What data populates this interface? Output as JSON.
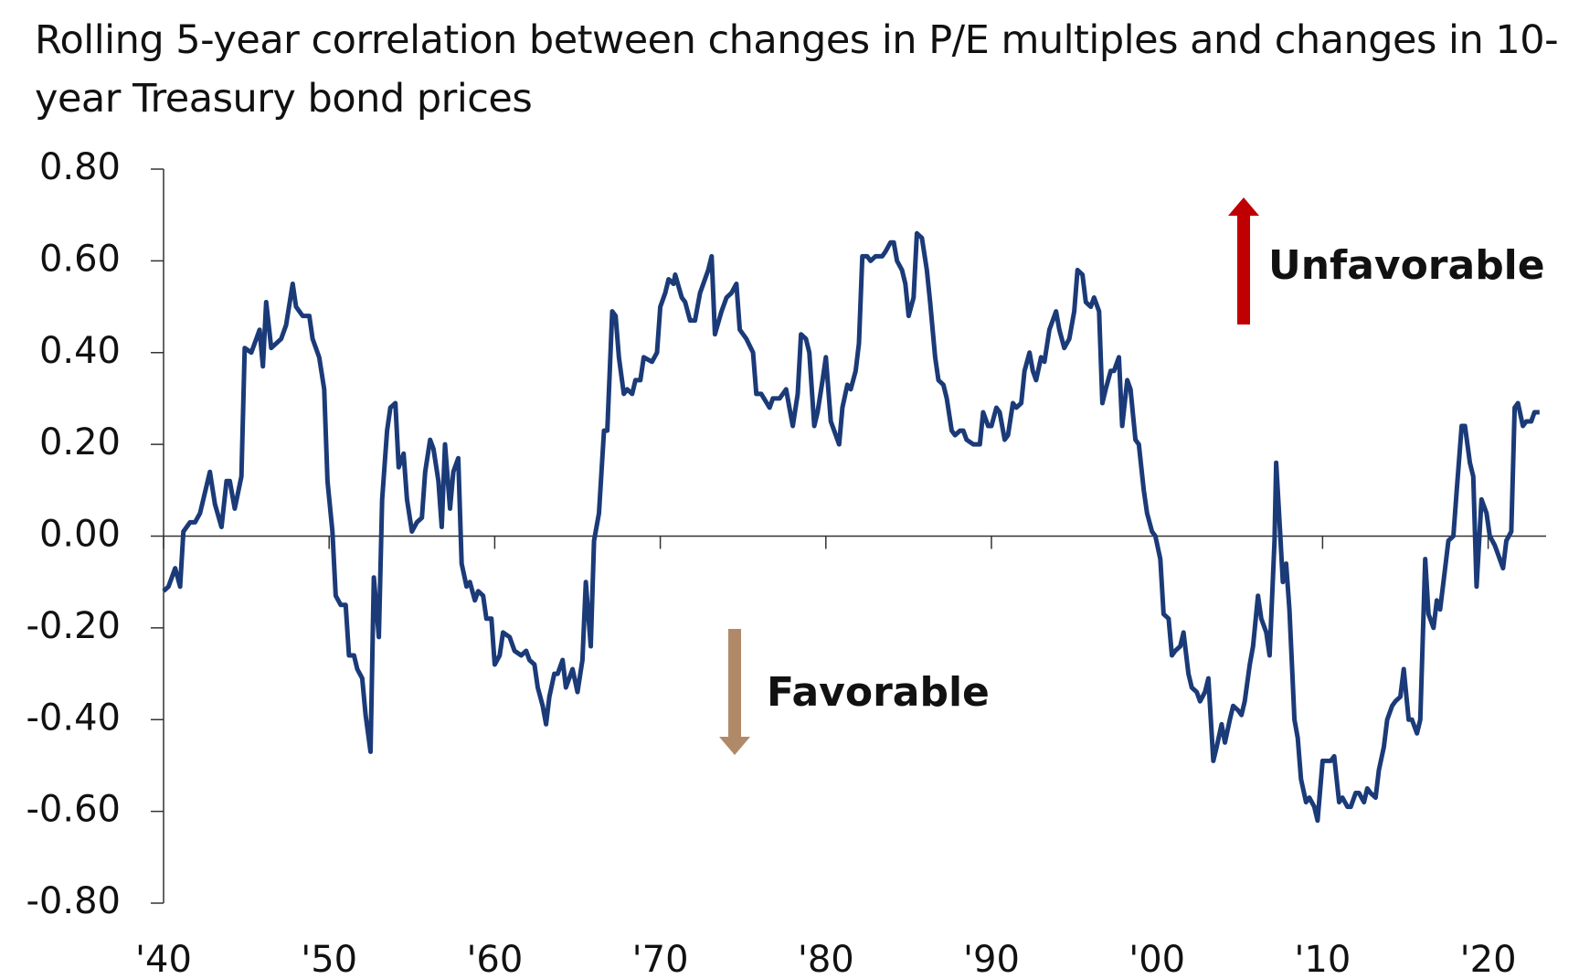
{
  "chart_data": {
    "type": "line",
    "title": "Rolling 5-year correlation between changes in P/E multiples and changes in 10-year Treasury bond prices",
    "annotations": [
      "Unfavorable",
      "Favorable"
    ],
    "color": "#1b3a78",
    "x": [
      1940.0,
      1940.3,
      1940.7,
      1941.0,
      1941.2,
      1941.6,
      1941.9,
      1942.2,
      1942.8,
      1943.1,
      1943.5,
      1943.8,
      1944.0,
      1944.3,
      1944.7,
      1944.9,
      1945.3,
      1945.6,
      1945.8,
      1946.0,
      1946.2,
      1946.5,
      1947.1,
      1947.4,
      1947.8,
      1948.0,
      1948.4,
      1948.8,
      1949.0,
      1949.4,
      1949.7,
      1949.9,
      1950.2,
      1950.4,
      1950.7,
      1951.0,
      1951.2,
      1951.5,
      1951.7,
      1952.0,
      1952.2,
      1952.5,
      1952.7,
      1953.0,
      1953.2,
      1953.5,
      1953.7,
      1954.0,
      1954.2,
      1954.5,
      1954.7,
      1955.0,
      1955.3,
      1955.6,
      1955.8,
      1956.1,
      1956.3,
      1956.6,
      1956.8,
      1957.0,
      1957.3,
      1957.5,
      1957.8,
      1958.0,
      1958.3,
      1958.5,
      1958.8,
      1959.0,
      1959.3,
      1959.5,
      1959.8,
      1960.0,
      1960.3,
      1960.5,
      1960.9,
      1961.2,
      1961.6,
      1961.9,
      1962.1,
      1962.4,
      1962.6,
      1962.9,
      1963.1,
      1963.3,
      1963.6,
      1963.8,
      1964.1,
      1964.3,
      1964.7,
      1965.0,
      1965.3,
      1965.5,
      1965.8,
      1966.0,
      1966.3,
      1966.6,
      1966.8,
      1967.1,
      1967.3,
      1967.5,
      1967.8,
      1968.0,
      1968.3,
      1968.5,
      1968.8,
      1969.0,
      1969.5,
      1969.8,
      1970.0,
      1970.3,
      1970.5,
      1970.8,
      1970.9,
      1971.3,
      1971.5,
      1971.8,
      1972.1,
      1972.4,
      1972.6,
      1972.9,
      1973.1,
      1973.3,
      1973.7,
      1974.0,
      1974.3,
      1974.6,
      1974.8,
      1975.2,
      1975.6,
      1975.8,
      1976.1,
      1976.6,
      1976.8,
      1977.2,
      1977.6,
      1977.8,
      1978.0,
      1978.3,
      1978.5,
      1978.8,
      1979.0,
      1979.3,
      1979.5,
      1979.8,
      1980.0,
      1980.3,
      1980.5,
      1980.8,
      1981.0,
      1981.3,
      1981.5,
      1981.8,
      1982.0,
      1982.2,
      1982.5,
      1982.7,
      1983.0,
      1983.4,
      1983.6,
      1983.9,
      1984.1,
      1984.3,
      1984.6,
      1984.8,
      1985.0,
      1985.3,
      1985.5,
      1985.8,
      1986.1,
      1986.3,
      1986.6,
      1986.8,
      1987.1,
      1987.3,
      1987.6,
      1987.8,
      1988.1,
      1988.3,
      1988.5,
      1988.9,
      1989.3,
      1989.5,
      1989.8,
      1990.0,
      1990.3,
      1990.5,
      1990.8,
      1991.0,
      1991.3,
      1991.5,
      1991.8,
      1992.0,
      1992.3,
      1992.5,
      1992.7,
      1993.0,
      1993.2,
      1993.5,
      1993.9,
      1994.1,
      1994.4,
      1994.7,
      1995.0,
      1995.2,
      1995.5,
      1995.7,
      1996.0,
      1996.2,
      1996.5,
      1996.7,
      1996.9,
      1997.2,
      1997.4,
      1997.7,
      1997.9,
      1998.2,
      1998.4,
      1998.7,
      1998.9,
      1999.2,
      1999.4,
      1999.7,
      1999.9,
      2000.2,
      2000.4,
      2000.7,
      2000.9,
      2001.1,
      2001.4,
      2001.6,
      2001.9,
      2002.1,
      2002.4,
      2002.6,
      2002.9,
      2003.1,
      2003.4,
      2003.6,
      2003.9,
      2004.1,
      2004.4,
      2004.6,
      2004.9,
      2005.1,
      2005.3,
      2005.6,
      2005.8,
      2006.1,
      2006.3,
      2006.6,
      2006.8,
      2007.1,
      2007.2,
      2007.4,
      2007.6,
      2007.8,
      2008.0,
      2008.3,
      2008.5,
      2008.7,
      2009.0,
      2009.2,
      2009.5,
      2009.7,
      2010.0,
      2010.2,
      2010.5,
      2010.7,
      2011.0,
      2011.2,
      2011.5,
      2011.7,
      2012.0,
      2012.2,
      2012.5,
      2012.7,
      2012.9,
      2013.2,
      2013.4,
      2013.7,
      2013.9,
      2014.2,
      2014.4,
      2014.7,
      2014.9,
      2015.2,
      2015.4,
      2015.7,
      2015.9,
      2016.2,
      2016.4,
      2016.7,
      2016.9,
      2017.1,
      2017.4,
      2017.6,
      2017.9,
      2018.1,
      2018.4,
      2018.6,
      2018.9,
      2019.1,
      2019.3,
      2019.6,
      2019.9,
      2020.1,
      2020.4,
      2020.6,
      2020.9,
      2021.1,
      2021.4,
      2021.6,
      2021.8,
      2022.1,
      2022.3,
      2022.6,
      2022.8,
      2023.1
    ],
    "values": [
      -0.12,
      -0.11,
      -0.07,
      -0.11,
      0.01,
      0.03,
      0.03,
      0.05,
      0.14,
      0.07,
      0.02,
      0.12,
      0.12,
      0.06,
      0.13,
      0.41,
      0.4,
      0.43,
      0.45,
      0.37,
      0.51,
      0.41,
      0.43,
      0.46,
      0.55,
      0.5,
      0.48,
      0.48,
      0.43,
      0.39,
      0.32,
      0.12,
      0.01,
      -0.13,
      -0.15,
      -0.15,
      -0.26,
      -0.26,
      -0.29,
      -0.31,
      -0.39,
      -0.47,
      -0.09,
      -0.22,
      0.08,
      0.23,
      0.28,
      0.29,
      0.15,
      0.18,
      0.08,
      0.01,
      0.03,
      0.04,
      0.14,
      0.21,
      0.19,
      0.12,
      0.02,
      0.2,
      0.06,
      0.14,
      0.17,
      -0.06,
      -0.11,
      -0.1,
      -0.14,
      -0.12,
      -0.13,
      -0.18,
      -0.18,
      -0.28,
      -0.26,
      -0.21,
      -0.22,
      -0.25,
      -0.26,
      -0.25,
      -0.27,
      -0.28,
      -0.33,
      -0.37,
      -0.41,
      -0.35,
      -0.3,
      -0.3,
      -0.27,
      -0.33,
      -0.29,
      -0.34,
      -0.27,
      -0.1,
      -0.24,
      -0.01,
      0.05,
      0.23,
      0.23,
      0.49,
      0.48,
      0.39,
      0.31,
      0.32,
      0.31,
      0.34,
      0.34,
      0.39,
      0.38,
      0.4,
      0.5,
      0.53,
      0.56,
      0.55,
      0.57,
      0.52,
      0.51,
      0.47,
      0.47,
      0.53,
      0.55,
      0.58,
      0.61,
      0.44,
      0.49,
      0.52,
      0.53,
      0.55,
      0.45,
      0.43,
      0.4,
      0.31,
      0.31,
      0.28,
      0.3,
      0.3,
      0.32,
      0.28,
      0.24,
      0.31,
      0.44,
      0.43,
      0.4,
      0.24,
      0.27,
      0.34,
      0.39,
      0.25,
      0.23,
      0.2,
      0.28,
      0.33,
      0.32,
      0.36,
      0.42,
      0.61,
      0.61,
      0.6,
      0.61,
      0.61,
      0.62,
      0.64,
      0.64,
      0.6,
      0.58,
      0.55,
      0.48,
      0.52,
      0.66,
      0.65,
      0.58,
      0.51,
      0.39,
      0.34,
      0.33,
      0.3,
      0.23,
      0.22,
      0.23,
      0.23,
      0.21,
      0.2,
      0.2,
      0.27,
      0.24,
      0.24,
      0.28,
      0.27,
      0.21,
      0.22,
      0.29,
      0.28,
      0.29,
      0.36,
      0.4,
      0.36,
      0.34,
      0.39,
      0.38,
      0.45,
      0.49,
      0.45,
      0.41,
      0.43,
      0.49,
      0.58,
      0.57,
      0.51,
      0.5,
      0.52,
      0.49,
      0.29,
      0.32,
      0.36,
      0.36,
      0.39,
      0.24,
      0.34,
      0.32,
      0.21,
      0.2,
      0.1,
      0.05,
      0.01,
      0.0,
      -0.05,
      -0.17,
      -0.18,
      -0.26,
      -0.25,
      -0.24,
      -0.21,
      -0.3,
      -0.33,
      -0.34,
      -0.36,
      -0.34,
      -0.31,
      -0.49,
      -0.46,
      -0.41,
      -0.45,
      -0.4,
      -0.37,
      -0.38,
      -0.39,
      -0.36,
      -0.28,
      -0.24,
      -0.13,
      -0.18,
      -0.21,
      -0.26,
      -0.01,
      0.16,
      0.03,
      -0.1,
      -0.06,
      -0.16,
      -0.4,
      -0.44,
      -0.53,
      -0.58,
      -0.57,
      -0.59,
      -0.62,
      -0.49,
      -0.49,
      -0.49,
      -0.48,
      -0.58,
      -0.57,
      -0.59,
      -0.59,
      -0.56,
      -0.56,
      -0.58,
      -0.55,
      -0.56,
      -0.57,
      -0.51,
      -0.46,
      -0.4,
      -0.37,
      -0.36,
      -0.35,
      -0.29,
      -0.4,
      -0.4,
      -0.43,
      -0.4,
      -0.05,
      -0.17,
      -0.2,
      -0.14,
      -0.16,
      -0.07,
      -0.01,
      0.0,
      0.1,
      0.24,
      0.24,
      0.16,
      0.13,
      -0.11,
      0.08,
      0.05,
      0.0,
      -0.02,
      -0.04,
      -0.07,
      -0.01,
      0.01,
      0.28,
      0.29,
      0.24,
      0.25,
      0.25,
      0.27,
      0.27
    ],
    "xlim": [
      1940,
      2023.5
    ],
    "xticks": [
      {
        "value": 1940,
        "label": "'40"
      },
      {
        "value": 1950,
        "label": "'50"
      },
      {
        "value": 1960,
        "label": "'60"
      },
      {
        "value": 1970,
        "label": "'70"
      },
      {
        "value": 1980,
        "label": "'80"
      },
      {
        "value": 1990,
        "label": "'90"
      },
      {
        "value": 2000,
        "label": "'00"
      },
      {
        "value": 2010,
        "label": "'10"
      },
      {
        "value": 2020,
        "label": "'20"
      }
    ],
    "ylim": [
      -0.8,
      0.8
    ],
    "yticks": [
      {
        "value": 0.8,
        "label": "0.80"
      },
      {
        "value": 0.6,
        "label": "0.60"
      },
      {
        "value": 0.4,
        "label": "0.40"
      },
      {
        "value": 0.2,
        "label": "0.20"
      },
      {
        "value": 0,
        "label": "0.00"
      },
      {
        "value": -0.2,
        "label": "-0.20"
      },
      {
        "value": -0.4,
        "label": "-0.40"
      },
      {
        "value": -0.6,
        "label": "-0.60"
      },
      {
        "value": -0.8,
        "label": "-0.80"
      }
    ]
  }
}
